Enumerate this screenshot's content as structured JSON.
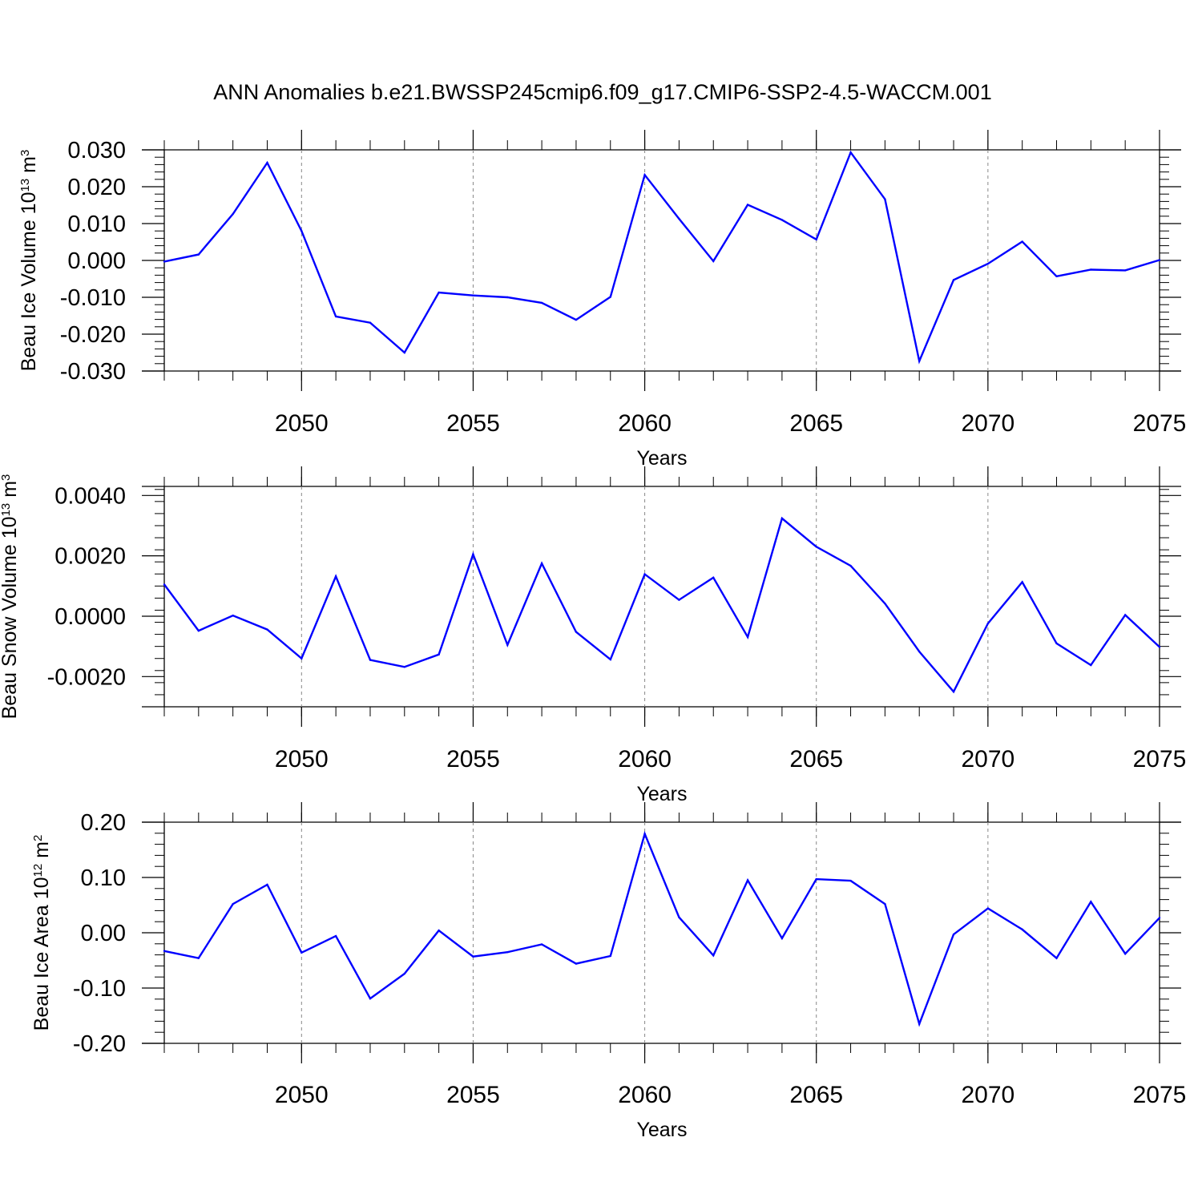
{
  "title": "ANN Anomalies b.e21.BWSSP245cmip6.f09_g17.CMIP6-SSP2-4.5-WACCM.001",
  "colors": {
    "line": "#0000ff",
    "axis": "#000000",
    "grid": "#888888",
    "background": "#ffffff"
  },
  "chart_data": [
    {
      "type": "line",
      "xlabel": "Years",
      "ylabel": {
        "prefix": "Beau Ice Volume 10",
        "exponent": "13",
        "unit": " m",
        "unit_exponent": "3"
      },
      "xlim": [
        2046,
        2075
      ],
      "ylim": [
        -0.03,
        0.03
      ],
      "yticks": [
        -0.03,
        -0.02,
        -0.01,
        0.0,
        0.01,
        0.02,
        0.03
      ],
      "ytick_labels": [
        "-0.030",
        "-0.020",
        "-0.010",
        "0.000",
        "0.010",
        "0.020",
        "0.030"
      ],
      "xticks": [
        2050,
        2055,
        2060,
        2065,
        2070,
        2075
      ],
      "xtick_labels": [
        "2050",
        "2055",
        "2060",
        "2065",
        "2070",
        "2075"
      ],
      "grid": "vertical dashed at major x ticks",
      "x": [
        2046,
        2047,
        2048,
        2049,
        2050,
        2051,
        2052,
        2053,
        2054,
        2055,
        2056,
        2057,
        2058,
        2059,
        2060,
        2061,
        2062,
        2063,
        2064,
        2065,
        2066,
        2067,
        2068,
        2069,
        2070,
        2071,
        2072,
        2073,
        2074,
        2075
      ],
      "values": [
        -0.0003,
        0.0016,
        0.0126,
        0.0265,
        0.008,
        -0.0152,
        -0.0169,
        -0.025,
        -0.0087,
        -0.0095,
        -0.01,
        -0.0115,
        -0.0161,
        -0.0099,
        0.0232,
        0.0113,
        -0.0002,
        0.0151,
        0.011,
        0.0057,
        0.0293,
        0.0166,
        -0.0273,
        -0.0053,
        -0.0009,
        0.0051,
        -0.0043,
        -0.0025,
        -0.0027,
        0.0001
      ]
    },
    {
      "type": "line",
      "xlabel": "Years",
      "ylabel": {
        "prefix": "Beau Snow Volume 10",
        "exponent": "13",
        "unit": " m",
        "unit_exponent": "3"
      },
      "xlim": [
        2046,
        2075
      ],
      "ylim": [
        -0.003,
        0.0043
      ],
      "yticks": [
        -0.002,
        0.0,
        0.002,
        0.004
      ],
      "ytick_labels": [
        "-0.0020",
        "0.0000",
        "0.0020",
        "0.0040"
      ],
      "xticks": [
        2050,
        2055,
        2060,
        2065,
        2070,
        2075
      ],
      "xtick_labels": [
        "2050",
        "2055",
        "2060",
        "2065",
        "2070",
        "2075"
      ],
      "grid": "vertical dashed at major x ticks",
      "x": [
        2046,
        2047,
        2048,
        2049,
        2050,
        2051,
        2052,
        2053,
        2054,
        2055,
        2056,
        2057,
        2058,
        2059,
        2060,
        2061,
        2062,
        2063,
        2064,
        2065,
        2066,
        2067,
        2068,
        2069,
        2070,
        2071,
        2072,
        2073,
        2074,
        2075
      ],
      "values": [
        0.00105,
        -0.00048,
        2e-05,
        -0.00044,
        -0.0014,
        0.00132,
        -0.00145,
        -0.00168,
        -0.00127,
        0.00205,
        -0.00095,
        0.00175,
        -0.00052,
        -0.00143,
        0.00139,
        0.00054,
        0.00128,
        -0.00069,
        0.00324,
        0.0023,
        0.00167,
        0.00042,
        -0.00117,
        -0.0025,
        -0.00024,
        0.00113,
        -0.0009,
        -0.00162,
        4e-05,
        -0.00102
      ]
    },
    {
      "type": "line",
      "xlabel": "Years",
      "ylabel": {
        "prefix": "Beau Ice Area 10",
        "exponent": "12",
        "unit": " m",
        "unit_exponent": "2"
      },
      "xlim": [
        2046,
        2075
      ],
      "ylim": [
        -0.2,
        0.2
      ],
      "yticks": [
        -0.2,
        -0.1,
        0.0,
        0.1,
        0.2
      ],
      "ytick_labels": [
        "-0.20",
        "-0.10",
        "0.00",
        "0.10",
        "0.20"
      ],
      "xticks": [
        2050,
        2055,
        2060,
        2065,
        2070,
        2075
      ],
      "xtick_labels": [
        "2050",
        "2055",
        "2060",
        "2065",
        "2070",
        "2075"
      ],
      "grid": "vertical dashed at major x ticks",
      "x": [
        2046,
        2047,
        2048,
        2049,
        2050,
        2051,
        2052,
        2053,
        2054,
        2055,
        2056,
        2057,
        2058,
        2059,
        2060,
        2061,
        2062,
        2063,
        2064,
        2065,
        2066,
        2067,
        2068,
        2069,
        2070,
        2071,
        2072,
        2073,
        2074,
        2075
      ],
      "values": [
        -0.033,
        -0.046,
        0.052,
        0.087,
        -0.036,
        -0.006,
        -0.119,
        -0.074,
        0.004,
        -0.043,
        -0.035,
        -0.021,
        -0.056,
        -0.042,
        0.179,
        0.028,
        -0.041,
        0.095,
        -0.01,
        0.097,
        0.094,
        0.052,
        -0.165,
        -0.003,
        0.044,
        0.006,
        -0.046,
        0.056,
        -0.038,
        0.027
      ]
    }
  ]
}
